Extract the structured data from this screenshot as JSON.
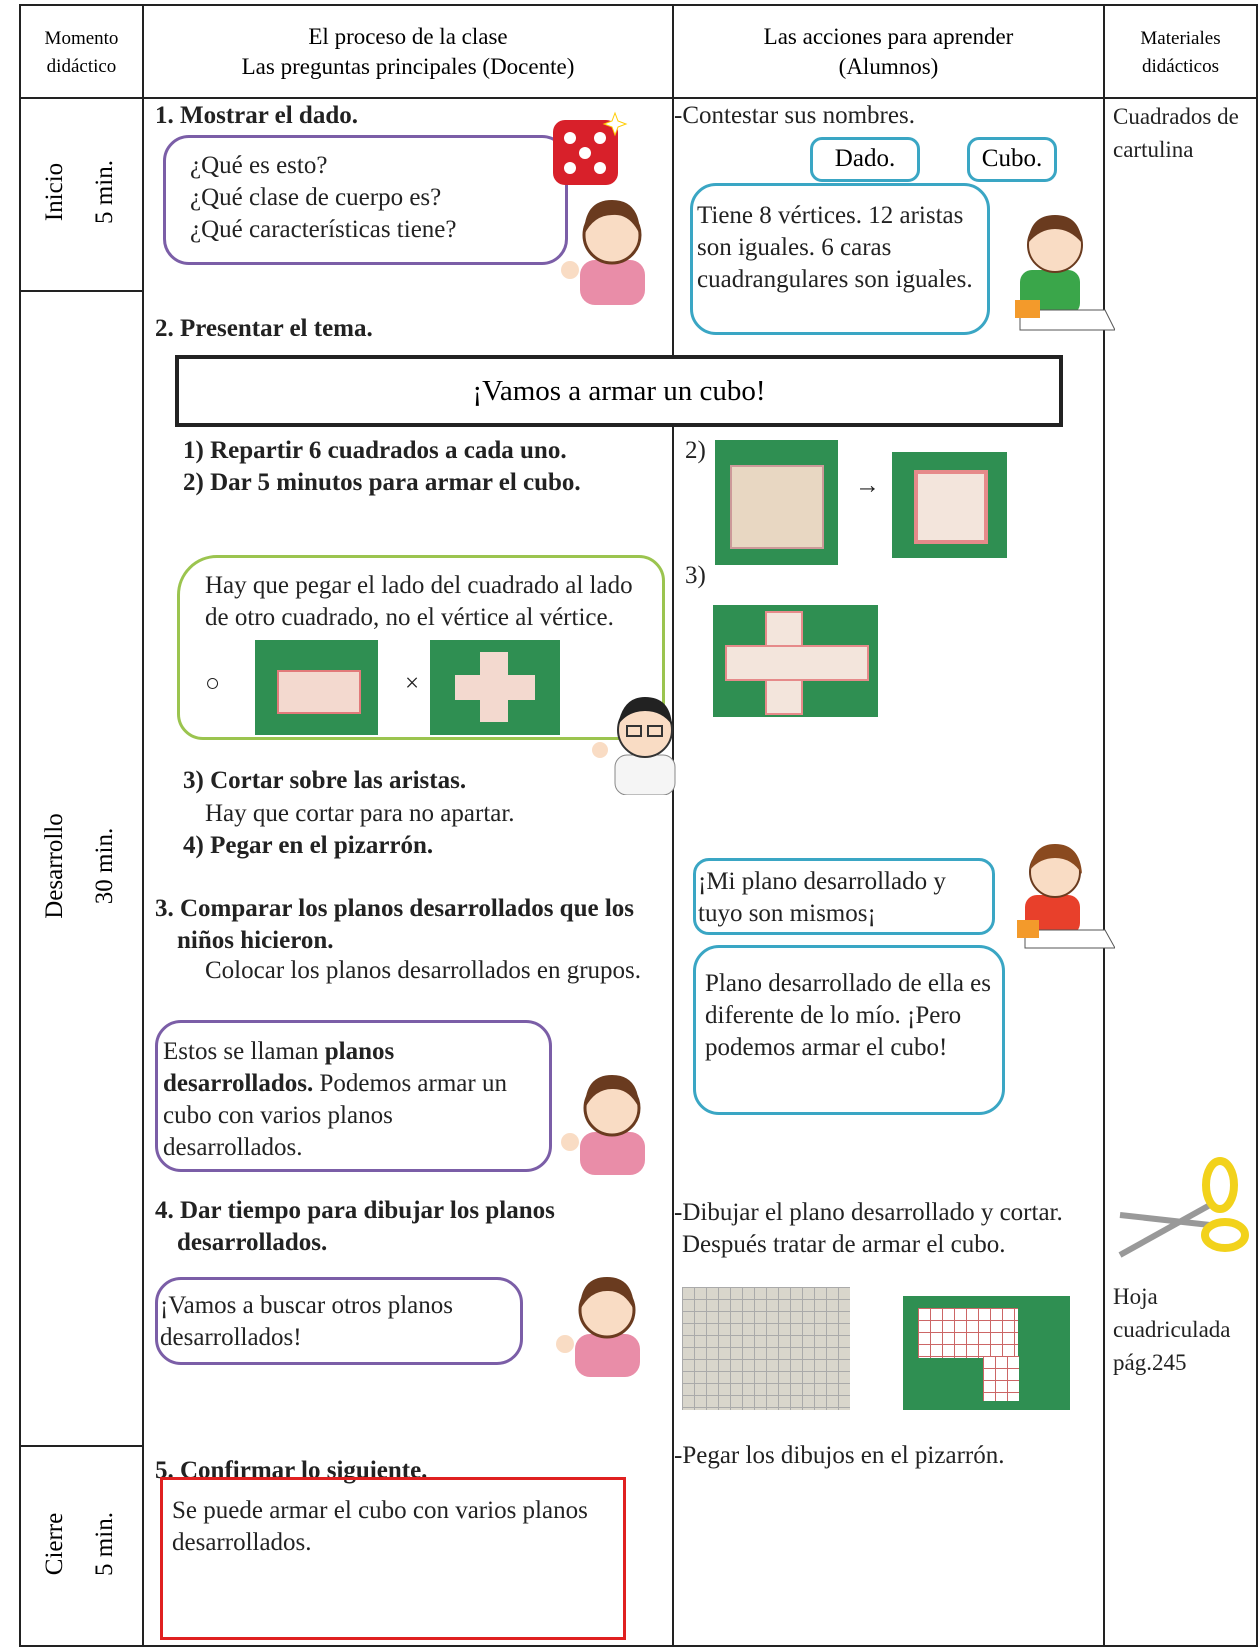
{
  "header": {
    "momento": [
      "Momento",
      "didáctico"
    ],
    "proceso": [
      "El proceso de la clase",
      "Las preguntas principales (Docente)"
    ],
    "acciones": [
      "Las acciones para aprender",
      "(Alumnos)"
    ],
    "materiales": [
      "Materiales",
      "didácticos"
    ]
  },
  "moments": [
    {
      "name": "Inicio",
      "time": "5 min."
    },
    {
      "name": "Desarrollo",
      "time": "30 min."
    },
    {
      "name": "Cierre",
      "time": "5 min."
    }
  ],
  "teacher": {
    "step1": "1. Mostrar el dado.",
    "bubble1": [
      "¿Qué es esto?",
      "¿Qué clase de cuerpo es?",
      "¿Qué características tiene?"
    ],
    "step2": "2. Presentar el tema.",
    "theme": "¡Vamos a armar un cubo!",
    "sub1": "1) Repartir 6 cuadrados a cada uno.",
    "sub2": "2) Dar 5 minutos para armar el cubo.",
    "bubble2": "Hay que pegar el lado del cuadrado al lado de otro cuadrado, no el vértice al vértice.",
    "good": "○",
    "bad": "×",
    "sub3": "3) Cortar sobre las aristas.",
    "sub3note": "Hay que cortar para no apartar.",
    "sub4": "4) Pegar en el pizarrón.",
    "step3": "3. Comparar los planos desarrollados que los niños hicieron.",
    "step3note": "Colocar los planos desarrollados en grupos.",
    "bubble3": [
      "Estos se llaman ",
      "planos desarrollados.",
      " Podemos armar un cubo con varios planos desarrollados."
    ],
    "step4": "4. Dar tiempo para dibujar los planos desarrollados.",
    "bubble4": "¡Vamos a buscar otros planos desarrollados!",
    "step5": "5. Confirmar lo siguiente.",
    "conclusion": "Se puede armar el cubo con varios planos desarrollados."
  },
  "students": {
    "action1": "-Contestar sus nombres.",
    "answer1": "Dado.",
    "answer2": "Cubo.",
    "bubble1": "Tiene 8 vértices. 12 aristas son iguales. 6 caras cuadrangulares son iguales.",
    "label2": "2)",
    "arrow": "→",
    "label3": "3)",
    "bubble2": "¡Mi plano desarrollado y tuyo son mismos¡",
    "bubble3": "Plano desarrollado de ella es diferente de lo mío. ¡Pero podemos armar el cubo!",
    "action4": "-Dibujar el plano desarrollado y cortar. Después tratar de armar el cubo.",
    "action5": "-Pegar los dibujos en el pizarrón."
  },
  "materials": {
    "item1": "Cuadrados de cartulina",
    "item2": "Hoja cuadriculada pág.245"
  }
}
